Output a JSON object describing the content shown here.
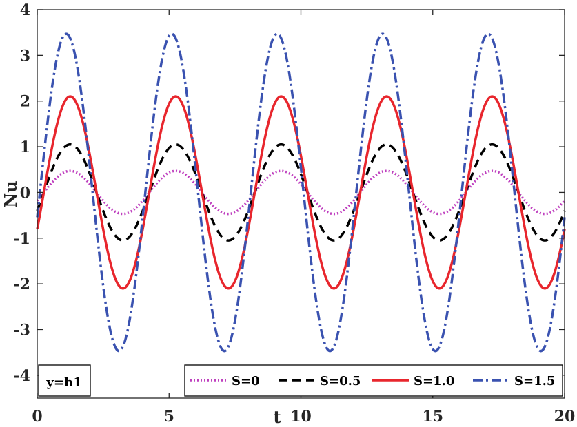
{
  "chart_data": {
    "type": "line",
    "title": "",
    "xlabel": "t",
    "ylabel": "Nu",
    "xlim": [
      0,
      20
    ],
    "ylim": [
      -4.5,
      4
    ],
    "xticks": [
      "0",
      "5",
      "10",
      "15",
      "20"
    ],
    "yticks": [
      "4",
      "3",
      "2",
      "1",
      "0",
      "-1",
      "-2",
      "-3",
      "-4"
    ],
    "grid": false,
    "legend_position": "bottom-right",
    "annotation": "y=h1",
    "series": [
      {
        "name": "S=0",
        "amplitude": 0.47,
        "color": "#bf40bf",
        "style": "dotted",
        "peaks_t": [
          1.25,
          5.25,
          9.25,
          13.25,
          17.25
        ],
        "peak_value": 0.47,
        "trough_value": -0.47
      },
      {
        "name": "S=0.5",
        "amplitude": 1.05,
        "color": "#000000",
        "style": "dashed",
        "peaks_t": [
          1.25,
          5.25,
          9.25,
          13.25,
          17.25
        ],
        "peak_value": 1.05,
        "trough_value": -1.05
      },
      {
        "name": "S=1.0",
        "amplitude": 2.1,
        "color": "#e8262d",
        "style": "solid",
        "peaks_t": [
          1.25,
          5.25,
          9.25,
          13.25,
          17.25
        ],
        "peak_value": 2.1,
        "trough_value": -2.1
      },
      {
        "name": "S=1.5",
        "amplitude": 3.47,
        "color": "#3a52b0",
        "style": "dashdot",
        "peaks_t": [
          1.1,
          5.1,
          9.1,
          13.1,
          17.1
        ],
        "peak_value": 3.47,
        "trough_value": -3.47
      }
    ],
    "period": 4
  }
}
